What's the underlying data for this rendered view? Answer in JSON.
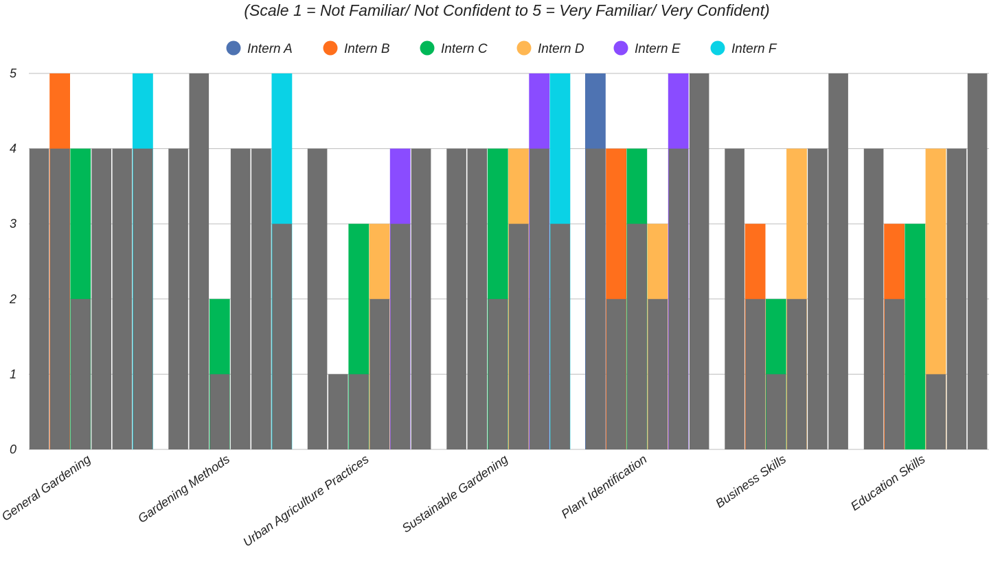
{
  "chart_data": {
    "type": "bar",
    "title": "",
    "subtitle": "(Scale 1 = Not Familiar/ Not Confident to 5 = Very Familiar/ Very Confident)",
    "xlabel": "",
    "ylabel": "",
    "ylim": [
      0,
      5
    ],
    "yticks": [
      "0",
      "1",
      "2",
      "3",
      "4",
      "5"
    ],
    "grid": true,
    "legend_position": "top",
    "categories": [
      "General Gardening",
      "Gardening Methods",
      "Urban Agriculture Practices",
      "Sustainable Gardening",
      "Plant Identification",
      "Business Skills",
      "Education Skills"
    ],
    "series": [
      {
        "name": "Intern A",
        "color": "#4e73b2",
        "values": [
          0,
          0,
          0,
          0,
          5,
          0,
          0
        ]
      },
      {
        "name": "Intern B",
        "color": "#ff6f1c",
        "values": [
          5,
          0,
          0,
          0,
          4,
          3,
          3
        ]
      },
      {
        "name": "Intern C",
        "color": "#00b857",
        "values": [
          4,
          2,
          3,
          4,
          4,
          2,
          3
        ]
      },
      {
        "name": "Intern D",
        "color": "#ffb752",
        "values": [
          0,
          0,
          3,
          4,
          3,
          4,
          4
        ]
      },
      {
        "name": "Intern E",
        "color": "#8a4cff",
        "values": [
          0,
          0,
          4,
          5,
          5,
          0,
          0
        ]
      },
      {
        "name": "Intern F",
        "color": "#0ad2e6",
        "values": [
          5,
          5,
          0,
          5,
          0,
          0,
          0
        ]
      }
    ],
    "gray_overlay": {
      "color": "#6f6f6f",
      "values": [
        [
          4,
          4,
          2,
          4,
          4,
          4
        ],
        [
          4,
          5,
          1,
          4,
          4,
          3
        ],
        [
          4,
          1,
          1,
          2,
          3,
          4
        ],
        [
          4,
          4,
          2,
          3,
          4,
          3
        ],
        [
          4,
          2,
          3,
          2,
          4,
          5
        ],
        [
          4,
          2,
          1,
          2,
          4,
          5
        ],
        [
          4,
          2,
          0,
          1,
          4,
          5
        ]
      ]
    }
  }
}
